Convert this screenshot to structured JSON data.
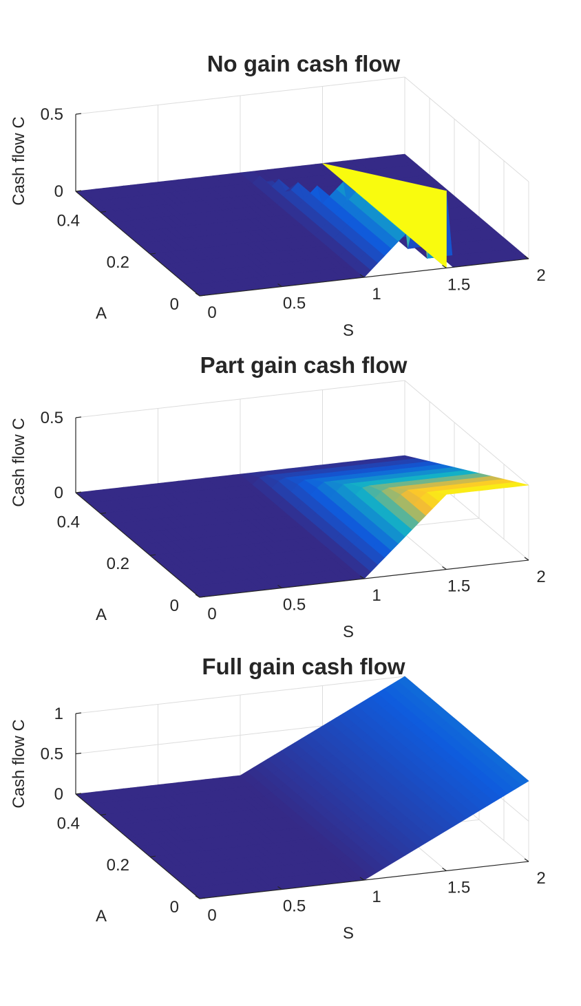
{
  "chart_data": [
    {
      "type": "surface",
      "title": "No gain cash flow",
      "xlabel": "S",
      "ylabel": "A",
      "zlabel": "Cash flow C",
      "xlim": [
        0,
        2
      ],
      "ylim": [
        0,
        0.5
      ],
      "zlim": [
        0,
        0.5
      ],
      "x_ticks": [
        "0",
        "0.5",
        "1",
        "1.5",
        "2"
      ],
      "y_ticks": [
        "0",
        "0.2",
        "0.4"
      ],
      "z_ticks": [
        "0",
        "0.5"
      ],
      "grid": true,
      "colormap": "parula",
      "series": [
        {
          "A": 0.5,
          "S": [
            0,
            1,
            1.5,
            1.5,
            2
          ],
          "C": [
            0,
            0,
            0,
            0,
            0
          ]
        },
        {
          "A": 0.25,
          "S": [
            0,
            1,
            1.25,
            1.5,
            1.5,
            2
          ],
          "C": [
            0,
            0,
            0.25,
            0.25,
            0,
            0
          ]
        },
        {
          "A": 0,
          "S": [
            0,
            1,
            1.5,
            1.5,
            2
          ],
          "C": [
            0,
            0,
            0.5,
            0,
            0
          ]
        }
      ]
    },
    {
      "type": "surface",
      "title": "Part gain cash flow",
      "xlabel": "S",
      "ylabel": "A",
      "zlabel": "Cash flow C",
      "xlim": [
        0,
        2
      ],
      "ylim": [
        0,
        0.5
      ],
      "zlim": [
        0,
        0.5
      ],
      "x_ticks": [
        "0",
        "0.5",
        "1",
        "1.5",
        "2"
      ],
      "y_ticks": [
        "0",
        "0.2",
        "0.4"
      ],
      "z_ticks": [
        "0",
        "0.5"
      ],
      "grid": true,
      "colormap": "parula",
      "series": [
        {
          "A": 0.5,
          "S": [
            0,
            1,
            1.5,
            2
          ],
          "C": [
            0,
            0,
            0,
            0
          ]
        },
        {
          "A": 0.25,
          "S": [
            0,
            1,
            1.5,
            2
          ],
          "C": [
            0,
            0,
            0.25,
            0.25
          ]
        },
        {
          "A": 0,
          "S": [
            0,
            1,
            1.5,
            2
          ],
          "C": [
            0,
            0,
            0.5,
            0.5
          ]
        }
      ]
    },
    {
      "type": "surface",
      "title": "Full gain cash flow",
      "xlabel": "S",
      "ylabel": "A",
      "zlabel": "Cash flow C",
      "xlim": [
        0,
        2
      ],
      "ylim": [
        0,
        0.5
      ],
      "zlim": [
        0,
        1
      ],
      "x_ticks": [
        "0",
        "0.5",
        "1",
        "1.5",
        "2"
      ],
      "y_ticks": [
        "0",
        "0.2",
        "0.4"
      ],
      "z_ticks": [
        "0",
        "0.5",
        "1"
      ],
      "grid": true,
      "colormap": "parula",
      "series": [
        {
          "A": 0.5,
          "S": [
            0,
            1,
            2
          ],
          "C": [
            0,
            0,
            1
          ]
        },
        {
          "A": 0.25,
          "S": [
            0,
            1,
            2
          ],
          "C": [
            0,
            0,
            1
          ]
        },
        {
          "A": 0,
          "S": [
            0,
            1,
            2
          ],
          "C": [
            0,
            0,
            1
          ]
        }
      ]
    }
  ],
  "colors": {
    "surface_low": "#352a87",
    "surface_mid_blue": "#0f5cdd",
    "surface_cyan": "#14b0c6",
    "surface_orange": "#fbbd2f",
    "surface_high": "#f9fb0e",
    "grid": "#dcdcdc",
    "axis": "#262626"
  }
}
